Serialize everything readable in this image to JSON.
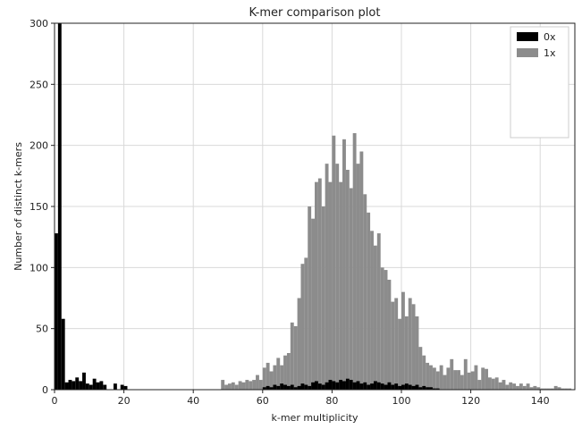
{
  "chart_data": {
    "type": "bar",
    "title": "K-mer comparison plot",
    "xlabel": "k-mer multiplicity",
    "ylabel": "Number of distinct k-mers",
    "xlim": [
      0,
      150
    ],
    "ylim": [
      0,
      300
    ],
    "xticks": [
      0,
      20,
      40,
      60,
      80,
      100,
      120,
      140
    ],
    "yticks": [
      0,
      50,
      100,
      150,
      200,
      250,
      300
    ],
    "grid": true,
    "legend_position": "top-right",
    "bin_width": 1,
    "series": [
      {
        "name": "0x",
        "color": "#000000",
        "x": [
          0,
          1,
          2,
          3,
          4,
          5,
          6,
          7,
          8,
          9,
          10,
          11,
          12,
          13,
          14,
          15,
          16,
          17,
          18,
          19,
          20,
          21,
          60,
          61,
          62,
          63,
          64,
          65,
          66,
          67,
          68,
          69,
          70,
          71,
          72,
          73,
          74,
          75,
          76,
          77,
          78,
          79,
          80,
          81,
          82,
          83,
          84,
          85,
          86,
          87,
          88,
          89,
          90,
          91,
          92,
          93,
          94,
          95,
          96,
          97,
          98,
          99,
          100,
          101,
          102,
          103,
          104,
          105,
          106,
          107,
          108,
          109,
          110
        ],
        "values": [
          128,
          300,
          58,
          6,
          8,
          7,
          10,
          7,
          14,
          5,
          4,
          9,
          6,
          7,
          4,
          0,
          0,
          5,
          0,
          4,
          3,
          0,
          2,
          3,
          2,
          4,
          3,
          5,
          4,
          3,
          4,
          2,
          3,
          5,
          4,
          3,
          6,
          7,
          5,
          4,
          6,
          8,
          7,
          6,
          8,
          7,
          9,
          8,
          6,
          7,
          5,
          6,
          4,
          5,
          7,
          6,
          5,
          4,
          6,
          4,
          5,
          3,
          4,
          5,
          4,
          3,
          4,
          2,
          3,
          2,
          2,
          1,
          1
        ]
      },
      {
        "name": "1x",
        "color": "#8c8c8c",
        "x": [
          48,
          49,
          50,
          51,
          52,
          53,
          54,
          55,
          56,
          57,
          58,
          59,
          60,
          61,
          62,
          63,
          64,
          65,
          66,
          67,
          68,
          69,
          70,
          71,
          72,
          73,
          74,
          75,
          76,
          77,
          78,
          79,
          80,
          81,
          82,
          83,
          84,
          85,
          86,
          87,
          88,
          89,
          90,
          91,
          92,
          93,
          94,
          95,
          96,
          97,
          98,
          99,
          100,
          101,
          102,
          103,
          104,
          105,
          106,
          107,
          108,
          109,
          110,
          111,
          112,
          113,
          114,
          115,
          116,
          117,
          118,
          119,
          120,
          121,
          122,
          123,
          124,
          125,
          126,
          127,
          128,
          129,
          130,
          131,
          132,
          133,
          134,
          135,
          136,
          137,
          138,
          139,
          140,
          141,
          142,
          143,
          144,
          145,
          146,
          147,
          148
        ],
        "values": [
          8,
          4,
          5,
          6,
          4,
          7,
          6,
          8,
          7,
          8,
          12,
          8,
          18,
          22,
          15,
          20,
          26,
          20,
          28,
          30,
          55,
          52,
          75,
          103,
          108,
          150,
          140,
          170,
          173,
          150,
          185,
          170,
          208,
          185,
          170,
          205,
          180,
          165,
          210,
          185,
          195,
          160,
          145,
          130,
          118,
          128,
          100,
          98,
          90,
          72,
          75,
          58,
          80,
          60,
          75,
          70,
          60,
          35,
          28,
          22,
          20,
          18,
          15,
          20,
          12,
          18,
          25,
          16,
          16,
          12,
          25,
          14,
          15,
          20,
          8,
          18,
          17,
          10,
          9,
          10,
          6,
          8,
          4,
          6,
          5,
          3,
          5,
          3,
          5,
          2,
          3,
          2,
          1,
          1,
          1,
          1,
          3,
          2,
          1,
          1,
          1
        ]
      }
    ]
  }
}
